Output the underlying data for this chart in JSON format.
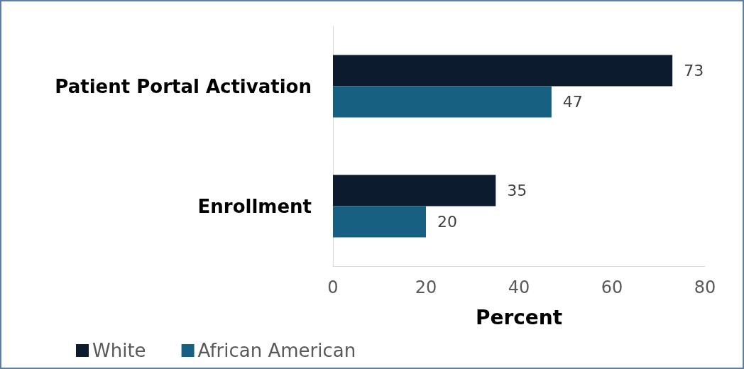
{
  "chart_data": {
    "type": "bar",
    "orientation": "horizontal",
    "xlabel": "Percent",
    "categories": [
      "Patient Portal Activation",
      "Enrollment"
    ],
    "series": [
      {
        "name": "White",
        "color": "#0d1b2e",
        "values": [
          73,
          35
        ]
      },
      {
        "name": "African American",
        "color": "#176082",
        "values": [
          47,
          20
        ]
      }
    ],
    "xlim": [
      0,
      80
    ],
    "xticks": [
      0,
      20,
      40,
      60,
      80
    ],
    "grid": false,
    "data_labels": true,
    "legend": "bottom left"
  }
}
